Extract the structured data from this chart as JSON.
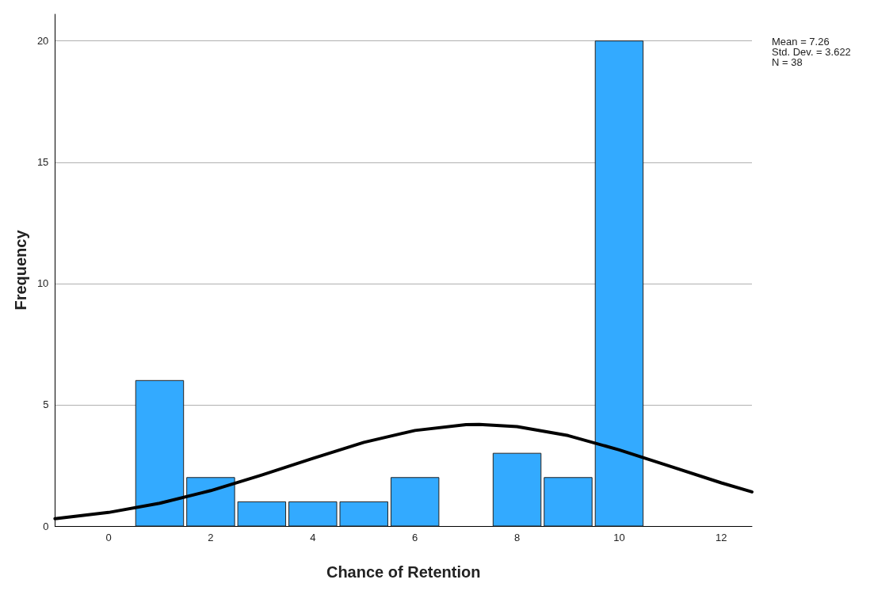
{
  "chart_data": {
    "type": "histogram",
    "xlabel": "Chance of Retention",
    "ylabel": "Frequency",
    "bins": [
      0.5,
      1.5,
      2.5,
      3.5,
      4.5,
      5.5,
      6.5,
      7.5,
      8.5,
      9.5,
      10.5
    ],
    "values": [
      6,
      2,
      1,
      1,
      1,
      2,
      0,
      3,
      2,
      20
    ],
    "color": "#33aaff",
    "series": [
      {
        "type": "line",
        "color": "#000000",
        "x": [
          -1.05,
          0,
          1,
          2,
          3,
          4,
          5,
          6,
          7,
          7.26,
          8,
          9,
          10,
          11,
          12,
          12.6
        ],
        "values": [
          0.3,
          0.56,
          0.94,
          1.46,
          2.1,
          2.79,
          3.45,
          3.94,
          4.18,
          4.19,
          4.1,
          3.73,
          3.14,
          2.46,
          1.78,
          1.41
        ]
      }
    ],
    "xlim": [
      -1.05,
      12.6
    ],
    "xticks": [
      0,
      2,
      4,
      6,
      8,
      10,
      12
    ],
    "ylim": [
      0,
      21.1
    ],
    "yticks": [
      0,
      5,
      10,
      15,
      20
    ],
    "grid": "y",
    "annotations": [
      "Mean = 7.26",
      "Std. Dev. = 3.622",
      "N = 38"
    ]
  }
}
